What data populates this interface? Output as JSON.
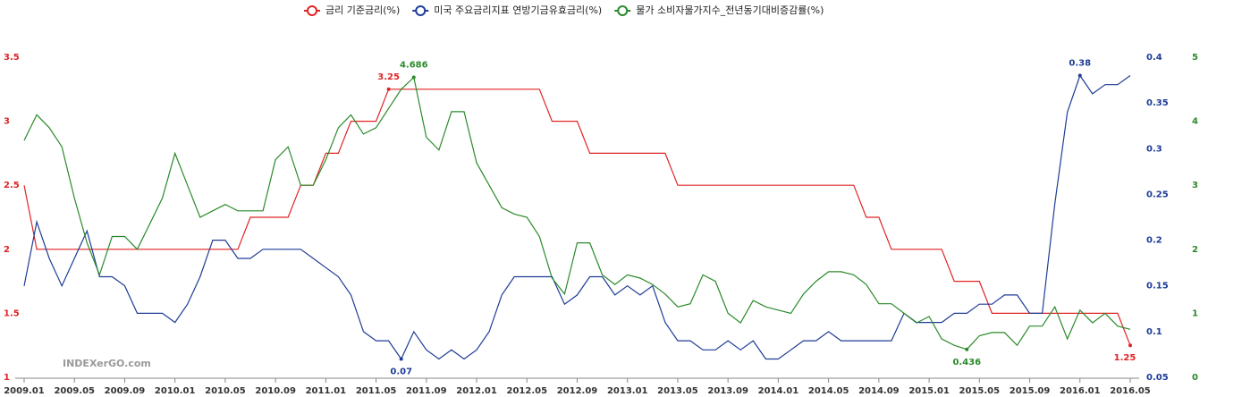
{
  "chart_data": {
    "type": "line",
    "watermark": "INDEXerGO.com",
    "categories": [
      "2009.01",
      null,
      null,
      null,
      "2009.05",
      null,
      null,
      null,
      "2009.09",
      null,
      null,
      null,
      "2010.01",
      null,
      null,
      null,
      "2010.05",
      null,
      null,
      null,
      "2010.09",
      null,
      null,
      null,
      "2011.01",
      null,
      null,
      null,
      "2011.05",
      null,
      null,
      null,
      "2011.09",
      null,
      null,
      null,
      "2012.01",
      null,
      null,
      null,
      "2012.05",
      null,
      null,
      null,
      "2012.09",
      null,
      null,
      null,
      "2013.01",
      null,
      null,
      null,
      "2013.05",
      null,
      null,
      null,
      "2013.09",
      null,
      null,
      null,
      "2014.01",
      null,
      null,
      null,
      "2014.05",
      null,
      null,
      null,
      "2014.09",
      null,
      null,
      null,
      "2015.01",
      null,
      null,
      null,
      "2015.05",
      null,
      null,
      null,
      "2015.09",
      null,
      null,
      null,
      "2016.01",
      null,
      null,
      null,
      "2016.05"
    ],
    "series": [
      {
        "name": "금리 기준금리(%)",
        "color": "#e02424",
        "axis": "y",
        "labeled_points": [
          29,
          88
        ],
        "values": [
          2.5,
          2,
          2,
          2,
          2,
          2,
          2,
          2,
          2,
          2,
          2,
          2,
          2,
          2,
          2,
          2,
          2,
          2,
          2.25,
          2.25,
          2.25,
          2.25,
          2.5,
          2.5,
          2.75,
          2.75,
          3,
          3,
          3,
          3.25,
          3.25,
          3.25,
          3.25,
          3.25,
          3.25,
          3.25,
          3.25,
          3.25,
          3.25,
          3.25,
          3.25,
          3.25,
          3,
          3,
          3,
          2.75,
          2.75,
          2.75,
          2.75,
          2.75,
          2.75,
          2.75,
          2.5,
          2.5,
          2.5,
          2.5,
          2.5,
          2.5,
          2.5,
          2.5,
          2.5,
          2.5,
          2.5,
          2.5,
          2.5,
          2.5,
          2.5,
          2.25,
          2.25,
          2,
          2,
          2,
          2,
          2,
          1.75,
          1.75,
          1.75,
          1.5,
          1.5,
          1.5,
          1.5,
          1.5,
          1.5,
          1.5,
          1.5,
          1.5,
          1.5,
          1.5,
          1.25
        ]
      },
      {
        "name": "미국 주요금리지표 연방기금유효금리(%)",
        "color": "#1f3c96",
        "axis": "y2",
        "labeled_points": [
          30,
          84
        ],
        "values": [
          0.15,
          0.22,
          0.18,
          0.15,
          0.18,
          0.21,
          0.16,
          0.16,
          0.15,
          0.12,
          0.12,
          0.12,
          0.11,
          0.13,
          0.16,
          0.2,
          0.2,
          0.18,
          0.18,
          0.19,
          0.19,
          0.19,
          0.19,
          0.18,
          0.17,
          0.16,
          0.14,
          0.1,
          0.09,
          0.09,
          0.07,
          0.1,
          0.08,
          0.07,
          0.08,
          0.07,
          0.08,
          0.1,
          0.14,
          0.16,
          0.16,
          0.16,
          0.16,
          0.13,
          0.14,
          0.16,
          0.16,
          0.14,
          0.15,
          0.14,
          0.15,
          0.11,
          0.09,
          0.09,
          0.08,
          0.08,
          0.09,
          0.08,
          0.09,
          0.07,
          0.07,
          0.08,
          0.09,
          0.09,
          0.1,
          0.09,
          0.09,
          0.09,
          0.09,
          0.09,
          0.12,
          0.11,
          0.11,
          0.11,
          0.12,
          0.12,
          0.13,
          0.13,
          0.14,
          0.14,
          0.12,
          0.12,
          0.24,
          0.34,
          0.38,
          0.36,
          0.37,
          0.37,
          0.38
        ]
      },
      {
        "name": "물가 소비자물가지수_전년동기대비증감률(%)",
        "color": "#2a8a2a",
        "axis": "y3",
        "labeled_points": [
          31,
          75
        ],
        "values": [
          3.7,
          4.1,
          3.9,
          3.6,
          2.8,
          2.1,
          1.6,
          2.2,
          2.2,
          2.0,
          2.4,
          2.8,
          3.5,
          3.0,
          2.5,
          2.6,
          2.7,
          2.6,
          2.6,
          2.6,
          3.4,
          3.6,
          3.0,
          3.0,
          3.4,
          3.9,
          4.1,
          3.8,
          3.9,
          4.2,
          4.5,
          4.686,
          3.75,
          3.55,
          4.15,
          4.15,
          3.35,
          3.0,
          2.65,
          2.55,
          2.5,
          2.2,
          1.55,
          1.3,
          2.1,
          2.1,
          1.6,
          1.45,
          1.6,
          1.55,
          1.45,
          1.3,
          1.1,
          1.15,
          1.6,
          1.5,
          1.0,
          0.85,
          1.2,
          1.1,
          1.05,
          1.0,
          1.3,
          1.5,
          1.65,
          1.65,
          1.6,
          1.45,
          1.15,
          1.15,
          1.0,
          0.85,
          0.95,
          0.6,
          0.5,
          0.436,
          0.65,
          0.7,
          0.7,
          0.5,
          0.8,
          0.8,
          1.1,
          0.6,
          1.05,
          0.85,
          1.0,
          0.8,
          0.75
        ]
      }
    ],
    "ylim": [
      1,
      3.5
    ],
    "yticks": [
      1,
      1.5,
      2,
      2.5,
      3,
      3.5
    ],
    "y2lim": [
      0.05,
      0.4
    ],
    "y2ticks": [
      0.05,
      0.1,
      0.15,
      0.2,
      0.25,
      0.3,
      0.35,
      0.4
    ],
    "y3lim": [
      0,
      5
    ],
    "y3ticks": [
      0,
      1,
      2,
      3,
      4,
      5
    ],
    "grid": false
  }
}
